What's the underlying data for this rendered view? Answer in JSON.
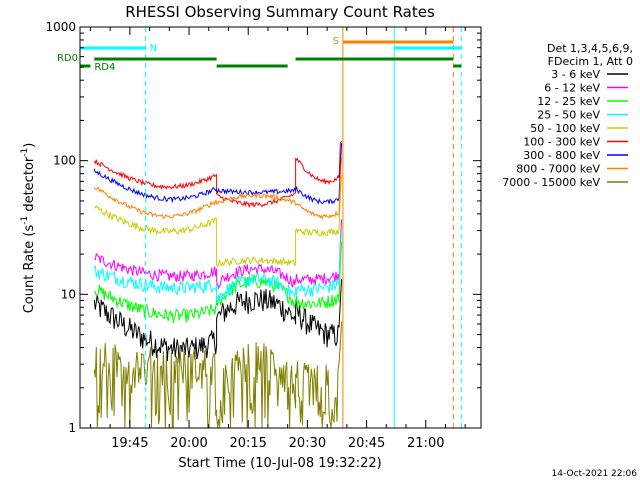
{
  "chart_data": {
    "type": "line",
    "title": "RHESSI Observing Summary Count Rates",
    "xlabel": "Start Time (10-Jul-08 19:32:22)",
    "ylabel_main": "Count Rate (s",
    "ylabel_sup1": "-1",
    "ylabel_mid": " detector",
    "ylabel_sup2": "-1",
    "ylabel_end": ")",
    "footer_date": "14-Oct-2021 22:06",
    "x_range": [
      "19:32:22",
      "21:14:00"
    ],
    "x_ticks": [
      "19:45",
      "20:00",
      "20:15",
      "20:30",
      "20:45",
      "21:00"
    ],
    "y_scale": "log",
    "y_range": [
      1,
      1000
    ],
    "y_tick_labels": [
      "1",
      "10",
      "100",
      "1000"
    ],
    "legend_header": [
      "Det 1,3,4,5,6,9,",
      "FDecim 1, Att 0"
    ],
    "legend_placement": "right",
    "series": [
      {
        "name": "3 - 6 keV",
        "color": "#000000"
      },
      {
        "name": "6 - 12 keV",
        "color": "#ff00ff"
      },
      {
        "name": "12 - 25 keV",
        "color": "#00ff00"
      },
      {
        "name": "25 - 50 keV",
        "color": "#00ffff"
      },
      {
        "name": "50 - 100 keV",
        "color": "#cccc00"
      },
      {
        "name": "100 - 300 keV",
        "color": "#ff0000"
      },
      {
        "name": "300 - 800 keV",
        "color": "#0000ff"
      },
      {
        "name": "800 - 7000 keV",
        "color": "#ff8000"
      },
      {
        "name": "7000 - 15000 keV",
        "color": "#808000"
      }
    ],
    "flags": [
      {
        "label": "N",
        "color": "#00ffff"
      },
      {
        "label": "S",
        "color": "#ff8000"
      },
      {
        "label": "RD0",
        "color": "#008000"
      },
      {
        "label": "RD4",
        "color": "#008000"
      }
    ],
    "vertical_markers": [
      {
        "time": "19:49",
        "color": "#00ffff",
        "style": "dashed"
      },
      {
        "time": "20:39",
        "color": "#ff8000",
        "style": "solid"
      },
      {
        "time": "20:52",
        "color": "#00ffff",
        "style": "solid"
      },
      {
        "time": "21:07",
        "color": "#ff8000",
        "style": "dashed"
      },
      {
        "time": "21:09",
        "color": "#00ffff",
        "style": "dashed"
      }
    ]
  }
}
